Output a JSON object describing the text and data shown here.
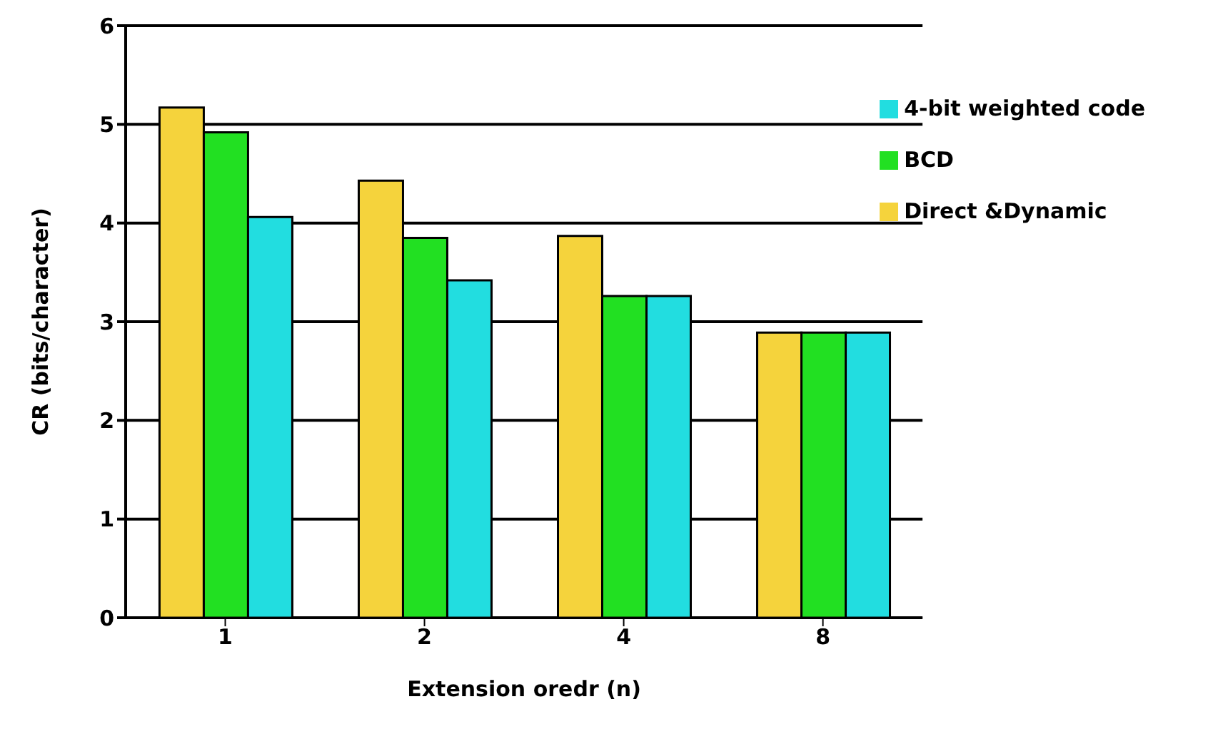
{
  "chart_data": {
    "type": "bar",
    "xlabel": "Extension oredr (n)",
    "ylabel": "CR (bits/character)",
    "categories": [
      "1",
      "2",
      "4",
      "8"
    ],
    "series": [
      {
        "name": "Direct &Dynamic",
        "color": "#f5d33c",
        "values": [
          5.17,
          4.43,
          3.87,
          2.89
        ]
      },
      {
        "name": "BCD",
        "color": "#22e022",
        "values": [
          4.92,
          3.85,
          3.26,
          2.89
        ]
      },
      {
        "name": "4-bit weighted code",
        "color": "#22dde0",
        "values": [
          4.06,
          3.42,
          3.26,
          2.89
        ]
      }
    ],
    "ylim": [
      0,
      6
    ],
    "yticks": [
      0,
      1,
      2,
      3,
      4,
      5,
      6
    ],
    "grid": "y",
    "legend": "top right"
  }
}
